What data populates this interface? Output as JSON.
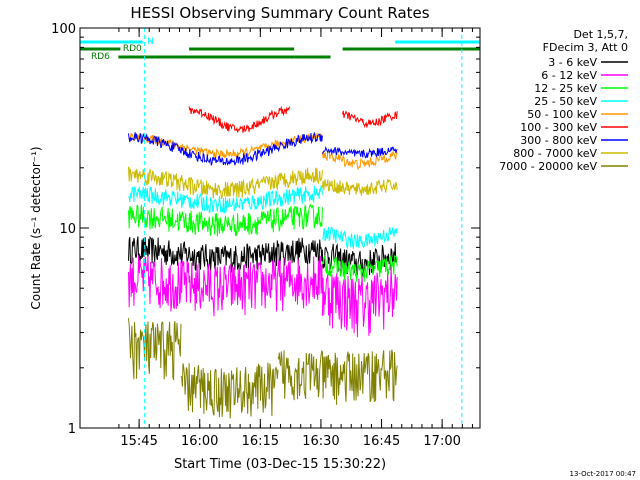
{
  "chart_data": {
    "type": "line",
    "title": "HESSI Observing Summary Count Rates",
    "xlabel": "Start Time (03-Dec-15 15:30:22)",
    "ylabel": "Count Rate (s⁻¹ detector⁻¹)",
    "x_unit": "minutes since 15:30:22",
    "xlim": [
      0,
      99
    ],
    "ylim": [
      1,
      100
    ],
    "yscale": "log",
    "x_ticks": [
      {
        "t": 14.63,
        "label": "15:45"
      },
      {
        "t": 29.63,
        "label": "16:00"
      },
      {
        "t": 44.63,
        "label": "16:15"
      },
      {
        "t": 59.63,
        "label": "16:30"
      },
      {
        "t": 74.63,
        "label": "16:45"
      },
      {
        "t": 89.63,
        "label": "17:00"
      }
    ],
    "y_ticks": [
      {
        "v": 1,
        "label": "1"
      },
      {
        "v": 10,
        "label": "10"
      },
      {
        "v": 100,
        "label": "100"
      }
    ],
    "legend_header": [
      "Det 1,5,7,",
      "FDecim 3, Att 0"
    ],
    "legend_position": "outside-right",
    "series": [
      {
        "name": "3 - 6 keV",
        "color": "#000000",
        "segments": [
          [
            12,
            60,
            7.5,
            0.1,
            0.16
          ],
          [
            60,
            78.5,
            7.0,
            0.1,
            0.16
          ]
        ]
      },
      {
        "name": "6 - 12 keV",
        "color": "#ff00ff",
        "segments": [
          [
            12,
            60,
            5.4,
            0.1,
            0.3
          ],
          [
            60,
            78.5,
            4.6,
            0.12,
            0.35
          ]
        ]
      },
      {
        "name": "12 - 25 keV",
        "color": "#00ff00",
        "segments": [
          [
            12,
            60,
            11.0,
            0.1,
            0.14
          ],
          [
            60,
            78.5,
            6.3,
            0.08,
            0.12
          ]
        ]
      },
      {
        "name": "25 - 50 keV",
        "color": "#00ffff",
        "segments": [
          [
            12,
            60,
            14.0,
            0.12,
            0.1
          ],
          [
            60,
            78.5,
            9.0,
            0.1,
            0.09
          ]
        ]
      },
      {
        "name": "50 - 100 keV",
        "color": "#ff9900",
        "segments": [
          [
            12,
            60,
            26.0,
            0.2,
            0.05
          ],
          [
            60,
            78.5,
            22.0,
            0.1,
            0.06
          ]
        ]
      },
      {
        "name": "100 - 300 keV",
        "color": "#ff0000",
        "segments": [
          [
            27,
            52,
            35.0,
            0.22,
            0.05
          ],
          [
            65,
            78.5,
            35.0,
            0.1,
            0.05
          ]
        ]
      },
      {
        "name": "300 - 800 keV",
        "color": "#0000ff",
        "segments": [
          [
            12,
            60,
            25.0,
            0.28,
            0.06
          ],
          [
            60,
            78.5,
            24.0,
            0.05,
            0.05
          ]
        ]
      },
      {
        "name": "800 - 7000 keV",
        "color": "#ccbb00",
        "segments": [
          [
            12,
            60,
            17.0,
            0.18,
            0.1
          ],
          [
            60,
            78.5,
            16.0,
            0.05,
            0.08
          ]
        ]
      },
      {
        "name": "7000 - 20000 keV",
        "color": "#808000",
        "segments": [
          [
            12,
            25,
            2.6,
            0.05,
            0.35
          ],
          [
            25,
            49,
            1.6,
            0.05,
            0.3
          ],
          [
            49,
            78.5,
            1.9,
            0.05,
            0.3
          ]
        ]
      }
    ],
    "flag_bars": [
      {
        "label": "N",
        "color": "#00ffff",
        "segments": [
          [
            0,
            15.5
          ],
          [
            78,
            99
          ]
        ]
      },
      {
        "label": "RD0",
        "color": "#008000",
        "segments": [
          [
            0,
            10
          ],
          [
            27,
            53
          ],
          [
            65,
            99
          ]
        ]
      },
      {
        "label": "RD6",
        "color": "#008000",
        "segments": [
          [
            9.5,
            53
          ],
          [
            53,
            62
          ]
        ]
      }
    ],
    "vlines": [
      {
        "t": 16.0,
        "color": "#00ffff"
      },
      {
        "t": 94.5,
        "color": "#00ffff"
      }
    ]
  },
  "footer": {
    "timestamp": "13-Oct-2017 00:47"
  }
}
